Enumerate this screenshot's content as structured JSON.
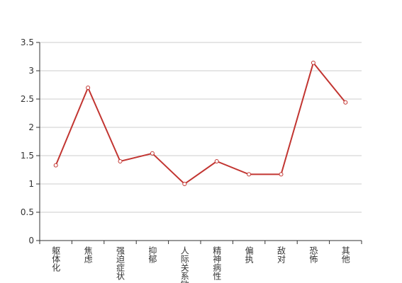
{
  "chart_data": {
    "type": "line",
    "categories": [
      "躯体化",
      "焦虑",
      "强迫症状",
      "抑郁",
      "人际关系敏感",
      "精神病性",
      "偏执",
      "敌对",
      "恐怖",
      "其他"
    ],
    "values": [
      1.33,
      2.7,
      1.4,
      1.54,
      1.0,
      1.4,
      1.17,
      1.17,
      3.14,
      2.44
    ],
    "color": "#c23531",
    "ylim": [
      0,
      3.5
    ],
    "yticks": [
      0,
      0.5,
      1,
      1.5,
      2,
      2.5,
      3,
      3.5
    ],
    "grid": true
  }
}
